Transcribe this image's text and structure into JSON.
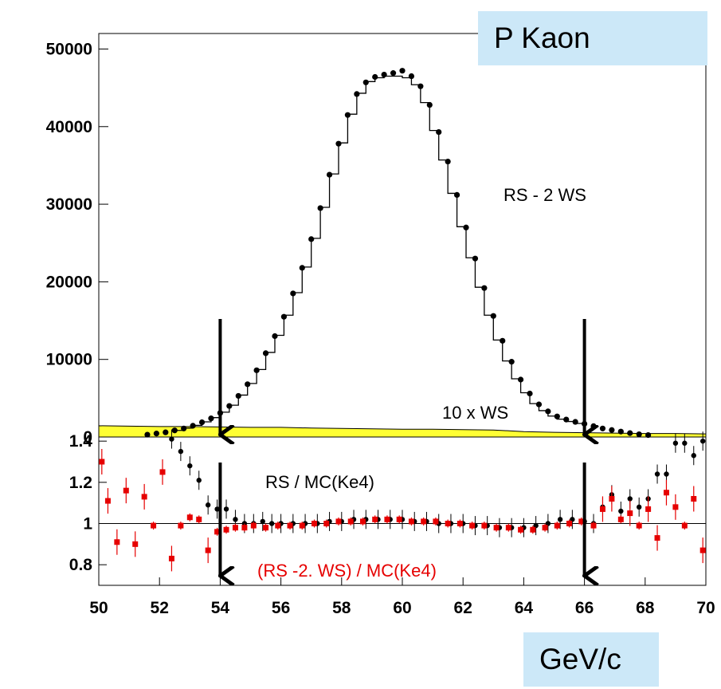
{
  "title_box": "P Kaon",
  "unit_box": "GeV/c",
  "colors": {
    "mc_histogram": "#000000",
    "data_points": "#000000",
    "ws_fill": "#ffff33",
    "ratio_rs": "#000000",
    "ratio_rs_ws": "#e60000",
    "annotation_red": "#e60000",
    "box_fill": "#cce8f8"
  },
  "chart_data": [
    {
      "type": "line",
      "panel": "top",
      "xlim": [
        50,
        70
      ],
      "ylim": [
        0,
        52000
      ],
      "y_ticks": [
        "0",
        "10000",
        "20000",
        "30000",
        "40000",
        "50000"
      ],
      "annotations": [
        "RS - 2 WS",
        "10 x WS"
      ],
      "arrows_x": [
        54,
        66
      ],
      "series": [
        {
          "name": "RS - 2 WS",
          "style": "points",
          "x": [
            51.6,
            51.9,
            52.2,
            52.5,
            52.8,
            53.1,
            53.4,
            53.7,
            54.0,
            54.3,
            54.6,
            54.9,
            55.2,
            55.5,
            55.8,
            56.1,
            56.4,
            56.7,
            57.0,
            57.3,
            57.6,
            57.9,
            58.2,
            58.5,
            58.8,
            59.1,
            59.4,
            59.7,
            60.0,
            60.3,
            60.6,
            60.9,
            61.2,
            61.5,
            61.8,
            62.1,
            62.4,
            62.7,
            63.0,
            63.3,
            63.6,
            63.9,
            64.2,
            64.5,
            64.8,
            65.1,
            65.4,
            65.7,
            66.0,
            66.3,
            66.6,
            66.9,
            67.2,
            67.5,
            67.8,
            68.1
          ],
          "y": [
            300,
            450,
            600,
            850,
            1100,
            1450,
            1900,
            2400,
            3100,
            4000,
            5300,
            6800,
            8600,
            10800,
            13000,
            15500,
            18500,
            21800,
            25500,
            29500,
            33800,
            37800,
            41500,
            44200,
            45700,
            46400,
            46700,
            46900,
            47200,
            46500,
            45200,
            42800,
            39300,
            35500,
            31200,
            27000,
            23000,
            19200,
            15600,
            12400,
            9700,
            7400,
            5600,
            4200,
            3300,
            2650,
            2250,
            1950,
            1700,
            1400,
            1100,
            900,
            700,
            500,
            350,
            250
          ]
        },
        {
          "name": "MC (Ke4)",
          "style": "histogram",
          "bin_edges": [
            52.5,
            52.8,
            53.1,
            53.4,
            53.7,
            54.0,
            54.3,
            54.6,
            54.9,
            55.2,
            55.5,
            55.8,
            56.1,
            56.4,
            56.7,
            57.0,
            57.3,
            57.6,
            57.9,
            58.2,
            58.5,
            58.8,
            59.1,
            59.4,
            59.7,
            60.0,
            60.3,
            60.6,
            60.9,
            61.2,
            61.5,
            61.8,
            62.1,
            62.4,
            62.7,
            63.0,
            63.3,
            63.6,
            63.9,
            64.2,
            64.5,
            64.8,
            65.1,
            65.4,
            65.7,
            66.0
          ],
          "values": [
            850,
            1150,
            1500,
            1950,
            2500,
            3200,
            4100,
            5400,
            6900,
            8700,
            10900,
            13100,
            15700,
            18600,
            21900,
            25600,
            29600,
            33900,
            37900,
            41600,
            44300,
            45800,
            46300,
            46500,
            46500,
            46300,
            45400,
            43100,
            39500,
            35700,
            31400,
            27100,
            23100,
            19300,
            15700,
            12500,
            9800,
            7500,
            5700,
            4300,
            3400,
            2700,
            2300,
            2000,
            1750
          ]
        },
        {
          "name": "10 x WS",
          "style": "filled",
          "x": [
            50,
            51,
            52,
            53,
            54,
            55,
            56,
            57,
            58,
            59,
            60,
            61,
            62,
            63,
            64,
            65,
            66,
            67,
            68,
            69,
            70
          ],
          "y": [
            1450,
            1400,
            1350,
            1350,
            1300,
            1250,
            1250,
            1150,
            1100,
            1050,
            1000,
            1000,
            950,
            900,
            700,
            600,
            550,
            500,
            450,
            450,
            400
          ]
        }
      ]
    },
    {
      "type": "scatter",
      "panel": "bottom",
      "xlim": [
        50,
        70
      ],
      "ylim": [
        0.7,
        1.42
      ],
      "y_ticks": [
        "0.8",
        "1",
        "1.2",
        "1.4"
      ],
      "x_ticks": [
        "50",
        "52",
        "54",
        "56",
        "58",
        "60",
        "62",
        "64",
        "66",
        "68",
        "70"
      ],
      "annotations": [
        "RS / MC(Ke4)",
        "(RS -2. WS) / MC(Ke4)"
      ],
      "series": [
        {
          "name": "RS / MC(Ke4)",
          "x": [
            52.4,
            52.7,
            53.0,
            53.3,
            53.6,
            53.9,
            54.2,
            54.5,
            54.8,
            55.1,
            55.4,
            55.7,
            56.0,
            56.4,
            56.8,
            57.2,
            57.6,
            58.0,
            58.4,
            58.8,
            59.2,
            59.6,
            60.0,
            60.4,
            60.8,
            61.2,
            61.6,
            62.0,
            62.4,
            62.8,
            63.2,
            63.6,
            64.0,
            64.4,
            64.8,
            65.2,
            65.6,
            66.0,
            66.3,
            66.6,
            66.9,
            67.2,
            67.5,
            67.8,
            68.1,
            68.4,
            68.7,
            69.0,
            69.3,
            69.6,
            69.9
          ],
          "y": [
            1.41,
            1.35,
            1.28,
            1.21,
            1.09,
            1.07,
            1.07,
            1.02,
            1.0,
            1.0,
            1.01,
            1.0,
            1.0,
            1.0,
            1.0,
            1.0,
            1.01,
            1.01,
            1.02,
            1.02,
            1.02,
            1.02,
            1.02,
            1.01,
            1.01,
            1.0,
            1.0,
            1.0,
            0.99,
            0.99,
            0.98,
            0.98,
            0.98,
            0.99,
            1.0,
            1.02,
            1.02,
            1.01,
            1.0,
            1.08,
            1.14,
            1.06,
            1.12,
            1.08,
            1.12,
            1.24,
            1.24,
            1.39,
            1.39,
            1.33,
            1.4
          ]
        },
        {
          "name": "(RS -2. WS) / MC(Ke4)",
          "x": [
            50.1,
            50.3,
            50.6,
            50.9,
            51.2,
            51.5,
            51.8,
            52.1,
            52.4,
            52.7,
            53.0,
            53.3,
            53.6,
            53.9,
            54.2,
            54.5,
            54.8,
            55.1,
            55.5,
            55.9,
            56.3,
            56.7,
            57.1,
            57.5,
            57.9,
            58.3,
            58.7,
            59.1,
            59.5,
            59.9,
            60.3,
            60.7,
            61.1,
            61.5,
            61.9,
            62.3,
            62.7,
            63.1,
            63.5,
            63.9,
            64.3,
            64.7,
            65.1,
            65.5,
            65.9,
            66.3,
            66.6,
            66.9,
            67.2,
            67.5,
            67.8,
            68.1,
            68.4,
            68.7,
            69.0,
            69.3,
            69.6,
            69.9
          ],
          "y": [
            1.3,
            1.11,
            0.91,
            1.16,
            0.9,
            1.13,
            0.99,
            1.25,
            0.83,
            0.99,
            1.03,
            1.02,
            0.87,
            0.96,
            0.97,
            0.98,
            0.98,
            0.99,
            0.98,
            0.99,
            0.99,
            0.99,
            1.0,
            1.0,
            1.01,
            1.01,
            1.01,
            1.02,
            1.02,
            1.02,
            1.01,
            1.01,
            1.01,
            1.0,
            1.0,
            0.99,
            0.99,
            0.98,
            0.98,
            0.97,
            0.97,
            0.98,
            0.99,
            1.0,
            1.01,
            0.99,
            1.07,
            1.12,
            1.02,
            1.05,
            0.99,
            1.07,
            0.93,
            1.15,
            1.08,
            0.99,
            1.12,
            0.87
          ]
        }
      ]
    }
  ]
}
